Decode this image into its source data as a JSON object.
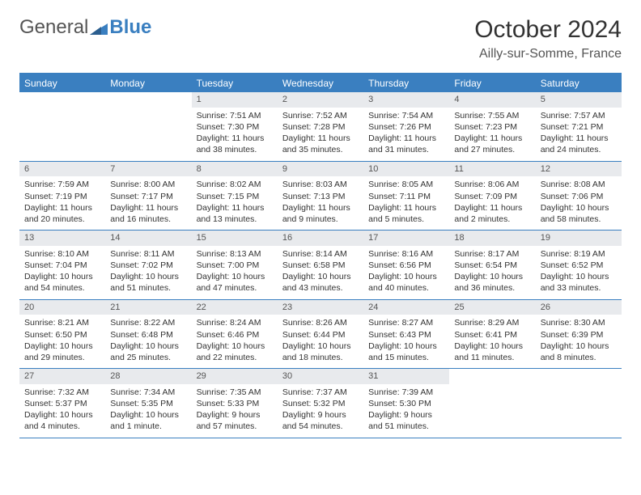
{
  "logo": {
    "text_general": "General",
    "text_blue": "Blue"
  },
  "title": "October 2024",
  "location": "Ailly-sur-Somme, France",
  "colors": {
    "header_bg": "#3a7fc0",
    "header_text": "#ffffff",
    "daynum_bg": "#e8eaed",
    "border": "#3a7fc0",
    "body_text": "#333333",
    "page_bg": "#ffffff"
  },
  "day_names": [
    "Sunday",
    "Monday",
    "Tuesday",
    "Wednesday",
    "Thursday",
    "Friday",
    "Saturday"
  ],
  "weeks": [
    [
      null,
      null,
      {
        "n": "1",
        "sr": "Sunrise: 7:51 AM",
        "ss": "Sunset: 7:30 PM",
        "dl": "Daylight: 11 hours and 38 minutes."
      },
      {
        "n": "2",
        "sr": "Sunrise: 7:52 AM",
        "ss": "Sunset: 7:28 PM",
        "dl": "Daylight: 11 hours and 35 minutes."
      },
      {
        "n": "3",
        "sr": "Sunrise: 7:54 AM",
        "ss": "Sunset: 7:26 PM",
        "dl": "Daylight: 11 hours and 31 minutes."
      },
      {
        "n": "4",
        "sr": "Sunrise: 7:55 AM",
        "ss": "Sunset: 7:23 PM",
        "dl": "Daylight: 11 hours and 27 minutes."
      },
      {
        "n": "5",
        "sr": "Sunrise: 7:57 AM",
        "ss": "Sunset: 7:21 PM",
        "dl": "Daylight: 11 hours and 24 minutes."
      }
    ],
    [
      {
        "n": "6",
        "sr": "Sunrise: 7:59 AM",
        "ss": "Sunset: 7:19 PM",
        "dl": "Daylight: 11 hours and 20 minutes."
      },
      {
        "n": "7",
        "sr": "Sunrise: 8:00 AM",
        "ss": "Sunset: 7:17 PM",
        "dl": "Daylight: 11 hours and 16 minutes."
      },
      {
        "n": "8",
        "sr": "Sunrise: 8:02 AM",
        "ss": "Sunset: 7:15 PM",
        "dl": "Daylight: 11 hours and 13 minutes."
      },
      {
        "n": "9",
        "sr": "Sunrise: 8:03 AM",
        "ss": "Sunset: 7:13 PM",
        "dl": "Daylight: 11 hours and 9 minutes."
      },
      {
        "n": "10",
        "sr": "Sunrise: 8:05 AM",
        "ss": "Sunset: 7:11 PM",
        "dl": "Daylight: 11 hours and 5 minutes."
      },
      {
        "n": "11",
        "sr": "Sunrise: 8:06 AM",
        "ss": "Sunset: 7:09 PM",
        "dl": "Daylight: 11 hours and 2 minutes."
      },
      {
        "n": "12",
        "sr": "Sunrise: 8:08 AM",
        "ss": "Sunset: 7:06 PM",
        "dl": "Daylight: 10 hours and 58 minutes."
      }
    ],
    [
      {
        "n": "13",
        "sr": "Sunrise: 8:10 AM",
        "ss": "Sunset: 7:04 PM",
        "dl": "Daylight: 10 hours and 54 minutes."
      },
      {
        "n": "14",
        "sr": "Sunrise: 8:11 AM",
        "ss": "Sunset: 7:02 PM",
        "dl": "Daylight: 10 hours and 51 minutes."
      },
      {
        "n": "15",
        "sr": "Sunrise: 8:13 AM",
        "ss": "Sunset: 7:00 PM",
        "dl": "Daylight: 10 hours and 47 minutes."
      },
      {
        "n": "16",
        "sr": "Sunrise: 8:14 AM",
        "ss": "Sunset: 6:58 PM",
        "dl": "Daylight: 10 hours and 43 minutes."
      },
      {
        "n": "17",
        "sr": "Sunrise: 8:16 AM",
        "ss": "Sunset: 6:56 PM",
        "dl": "Daylight: 10 hours and 40 minutes."
      },
      {
        "n": "18",
        "sr": "Sunrise: 8:17 AM",
        "ss": "Sunset: 6:54 PM",
        "dl": "Daylight: 10 hours and 36 minutes."
      },
      {
        "n": "19",
        "sr": "Sunrise: 8:19 AM",
        "ss": "Sunset: 6:52 PM",
        "dl": "Daylight: 10 hours and 33 minutes."
      }
    ],
    [
      {
        "n": "20",
        "sr": "Sunrise: 8:21 AM",
        "ss": "Sunset: 6:50 PM",
        "dl": "Daylight: 10 hours and 29 minutes."
      },
      {
        "n": "21",
        "sr": "Sunrise: 8:22 AM",
        "ss": "Sunset: 6:48 PM",
        "dl": "Daylight: 10 hours and 25 minutes."
      },
      {
        "n": "22",
        "sr": "Sunrise: 8:24 AM",
        "ss": "Sunset: 6:46 PM",
        "dl": "Daylight: 10 hours and 22 minutes."
      },
      {
        "n": "23",
        "sr": "Sunrise: 8:26 AM",
        "ss": "Sunset: 6:44 PM",
        "dl": "Daylight: 10 hours and 18 minutes."
      },
      {
        "n": "24",
        "sr": "Sunrise: 8:27 AM",
        "ss": "Sunset: 6:43 PM",
        "dl": "Daylight: 10 hours and 15 minutes."
      },
      {
        "n": "25",
        "sr": "Sunrise: 8:29 AM",
        "ss": "Sunset: 6:41 PM",
        "dl": "Daylight: 10 hours and 11 minutes."
      },
      {
        "n": "26",
        "sr": "Sunrise: 8:30 AM",
        "ss": "Sunset: 6:39 PM",
        "dl": "Daylight: 10 hours and 8 minutes."
      }
    ],
    [
      {
        "n": "27",
        "sr": "Sunrise: 7:32 AM",
        "ss": "Sunset: 5:37 PM",
        "dl": "Daylight: 10 hours and 4 minutes."
      },
      {
        "n": "28",
        "sr": "Sunrise: 7:34 AM",
        "ss": "Sunset: 5:35 PM",
        "dl": "Daylight: 10 hours and 1 minute."
      },
      {
        "n": "29",
        "sr": "Sunrise: 7:35 AM",
        "ss": "Sunset: 5:33 PM",
        "dl": "Daylight: 9 hours and 57 minutes."
      },
      {
        "n": "30",
        "sr": "Sunrise: 7:37 AM",
        "ss": "Sunset: 5:32 PM",
        "dl": "Daylight: 9 hours and 54 minutes."
      },
      {
        "n": "31",
        "sr": "Sunrise: 7:39 AM",
        "ss": "Sunset: 5:30 PM",
        "dl": "Daylight: 9 hours and 51 minutes."
      },
      null,
      null
    ]
  ]
}
